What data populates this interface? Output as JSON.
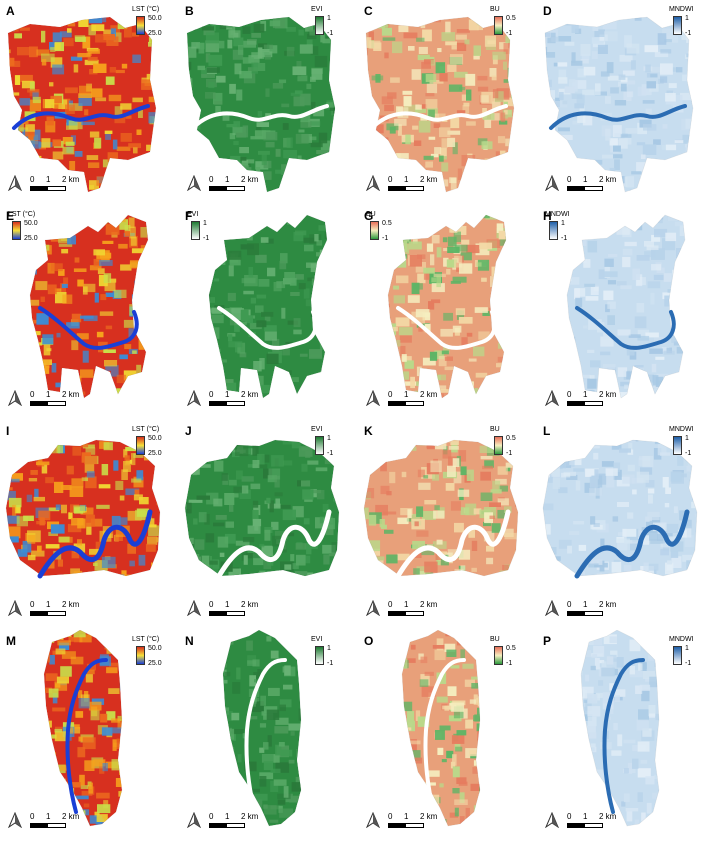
{
  "rows": [
    {
      "panels": [
        {
          "letter": "A",
          "legend_title": "LST (°C)",
          "legend_hi": "50.0",
          "legend_lo": "25.0",
          "ramp": "lst"
        },
        {
          "letter": "B",
          "legend_title": "EVI",
          "legend_hi": "1",
          "legend_lo": "-1",
          "ramp": "evi"
        },
        {
          "letter": "C",
          "legend_title": "BU",
          "legend_hi": "0.5",
          "legend_lo": "-1",
          "ramp": "bu"
        },
        {
          "letter": "D",
          "legend_title": "MNDWI",
          "legend_hi": "1",
          "legend_lo": "-1",
          "ramp": "mndwi"
        }
      ]
    },
    {
      "panels": [
        {
          "letter": "E",
          "legend_title": "LST (°C)",
          "legend_hi": "50.0",
          "legend_lo": "25.0",
          "ramp": "lst"
        },
        {
          "letter": "F",
          "legend_title": "EVI",
          "legend_hi": "1",
          "legend_lo": "-1",
          "ramp": "evi"
        },
        {
          "letter": "G",
          "legend_title": "BU",
          "legend_hi": "0.5",
          "legend_lo": "-1",
          "ramp": "bu"
        },
        {
          "letter": "H",
          "legend_title": "MNDWI",
          "legend_hi": "1",
          "legend_lo": "-1",
          "ramp": "mndwi"
        }
      ]
    },
    {
      "panels": [
        {
          "letter": "I",
          "legend_title": "LST (°C)",
          "legend_hi": "50.0",
          "legend_lo": "25.0",
          "ramp": "lst"
        },
        {
          "letter": "J",
          "legend_title": "EVI",
          "legend_hi": "1",
          "legend_lo": "-1",
          "ramp": "evi"
        },
        {
          "letter": "K",
          "legend_title": "BU",
          "legend_hi": "0.5",
          "legend_lo": "-1",
          "ramp": "bu"
        },
        {
          "letter": "L",
          "legend_title": "MNDWI",
          "legend_hi": "1",
          "legend_lo": "-1",
          "ramp": "mndwi"
        }
      ]
    },
    {
      "panels": [
        {
          "letter": "M",
          "legend_title": "LST (°C)",
          "legend_hi": "50.0",
          "legend_lo": "25.0",
          "ramp": "lst"
        },
        {
          "letter": "N",
          "legend_title": "EVI",
          "legend_hi": "1",
          "legend_lo": "-1",
          "ramp": "evi"
        },
        {
          "letter": "O",
          "legend_title": "BU",
          "legend_hi": "0.5",
          "legend_lo": "-1",
          "ramp": "bu"
        },
        {
          "letter": "P",
          "legend_title": "MNDWI",
          "legend_hi": "1",
          "legend_lo": "-1",
          "ramp": "mndwi"
        }
      ]
    }
  ],
  "scale_bar": {
    "t0": "0",
    "t1": "1",
    "t2": "2 km"
  },
  "colors": {
    "lst_hi": "#d7301f",
    "lst_mid": "#f6e23a",
    "lst_lo": "#1a3fd6",
    "evi_hi": "#1e7a32",
    "evi_lo": "#ffffff",
    "bu_hi": "#e8705a",
    "bu_mid": "#f5eec0",
    "bu_lo": "#2d9a3d",
    "mndwi_hi": "#1f5fa8",
    "mndwi_lo": "#ffffff",
    "water": "#ffffff"
  }
}
